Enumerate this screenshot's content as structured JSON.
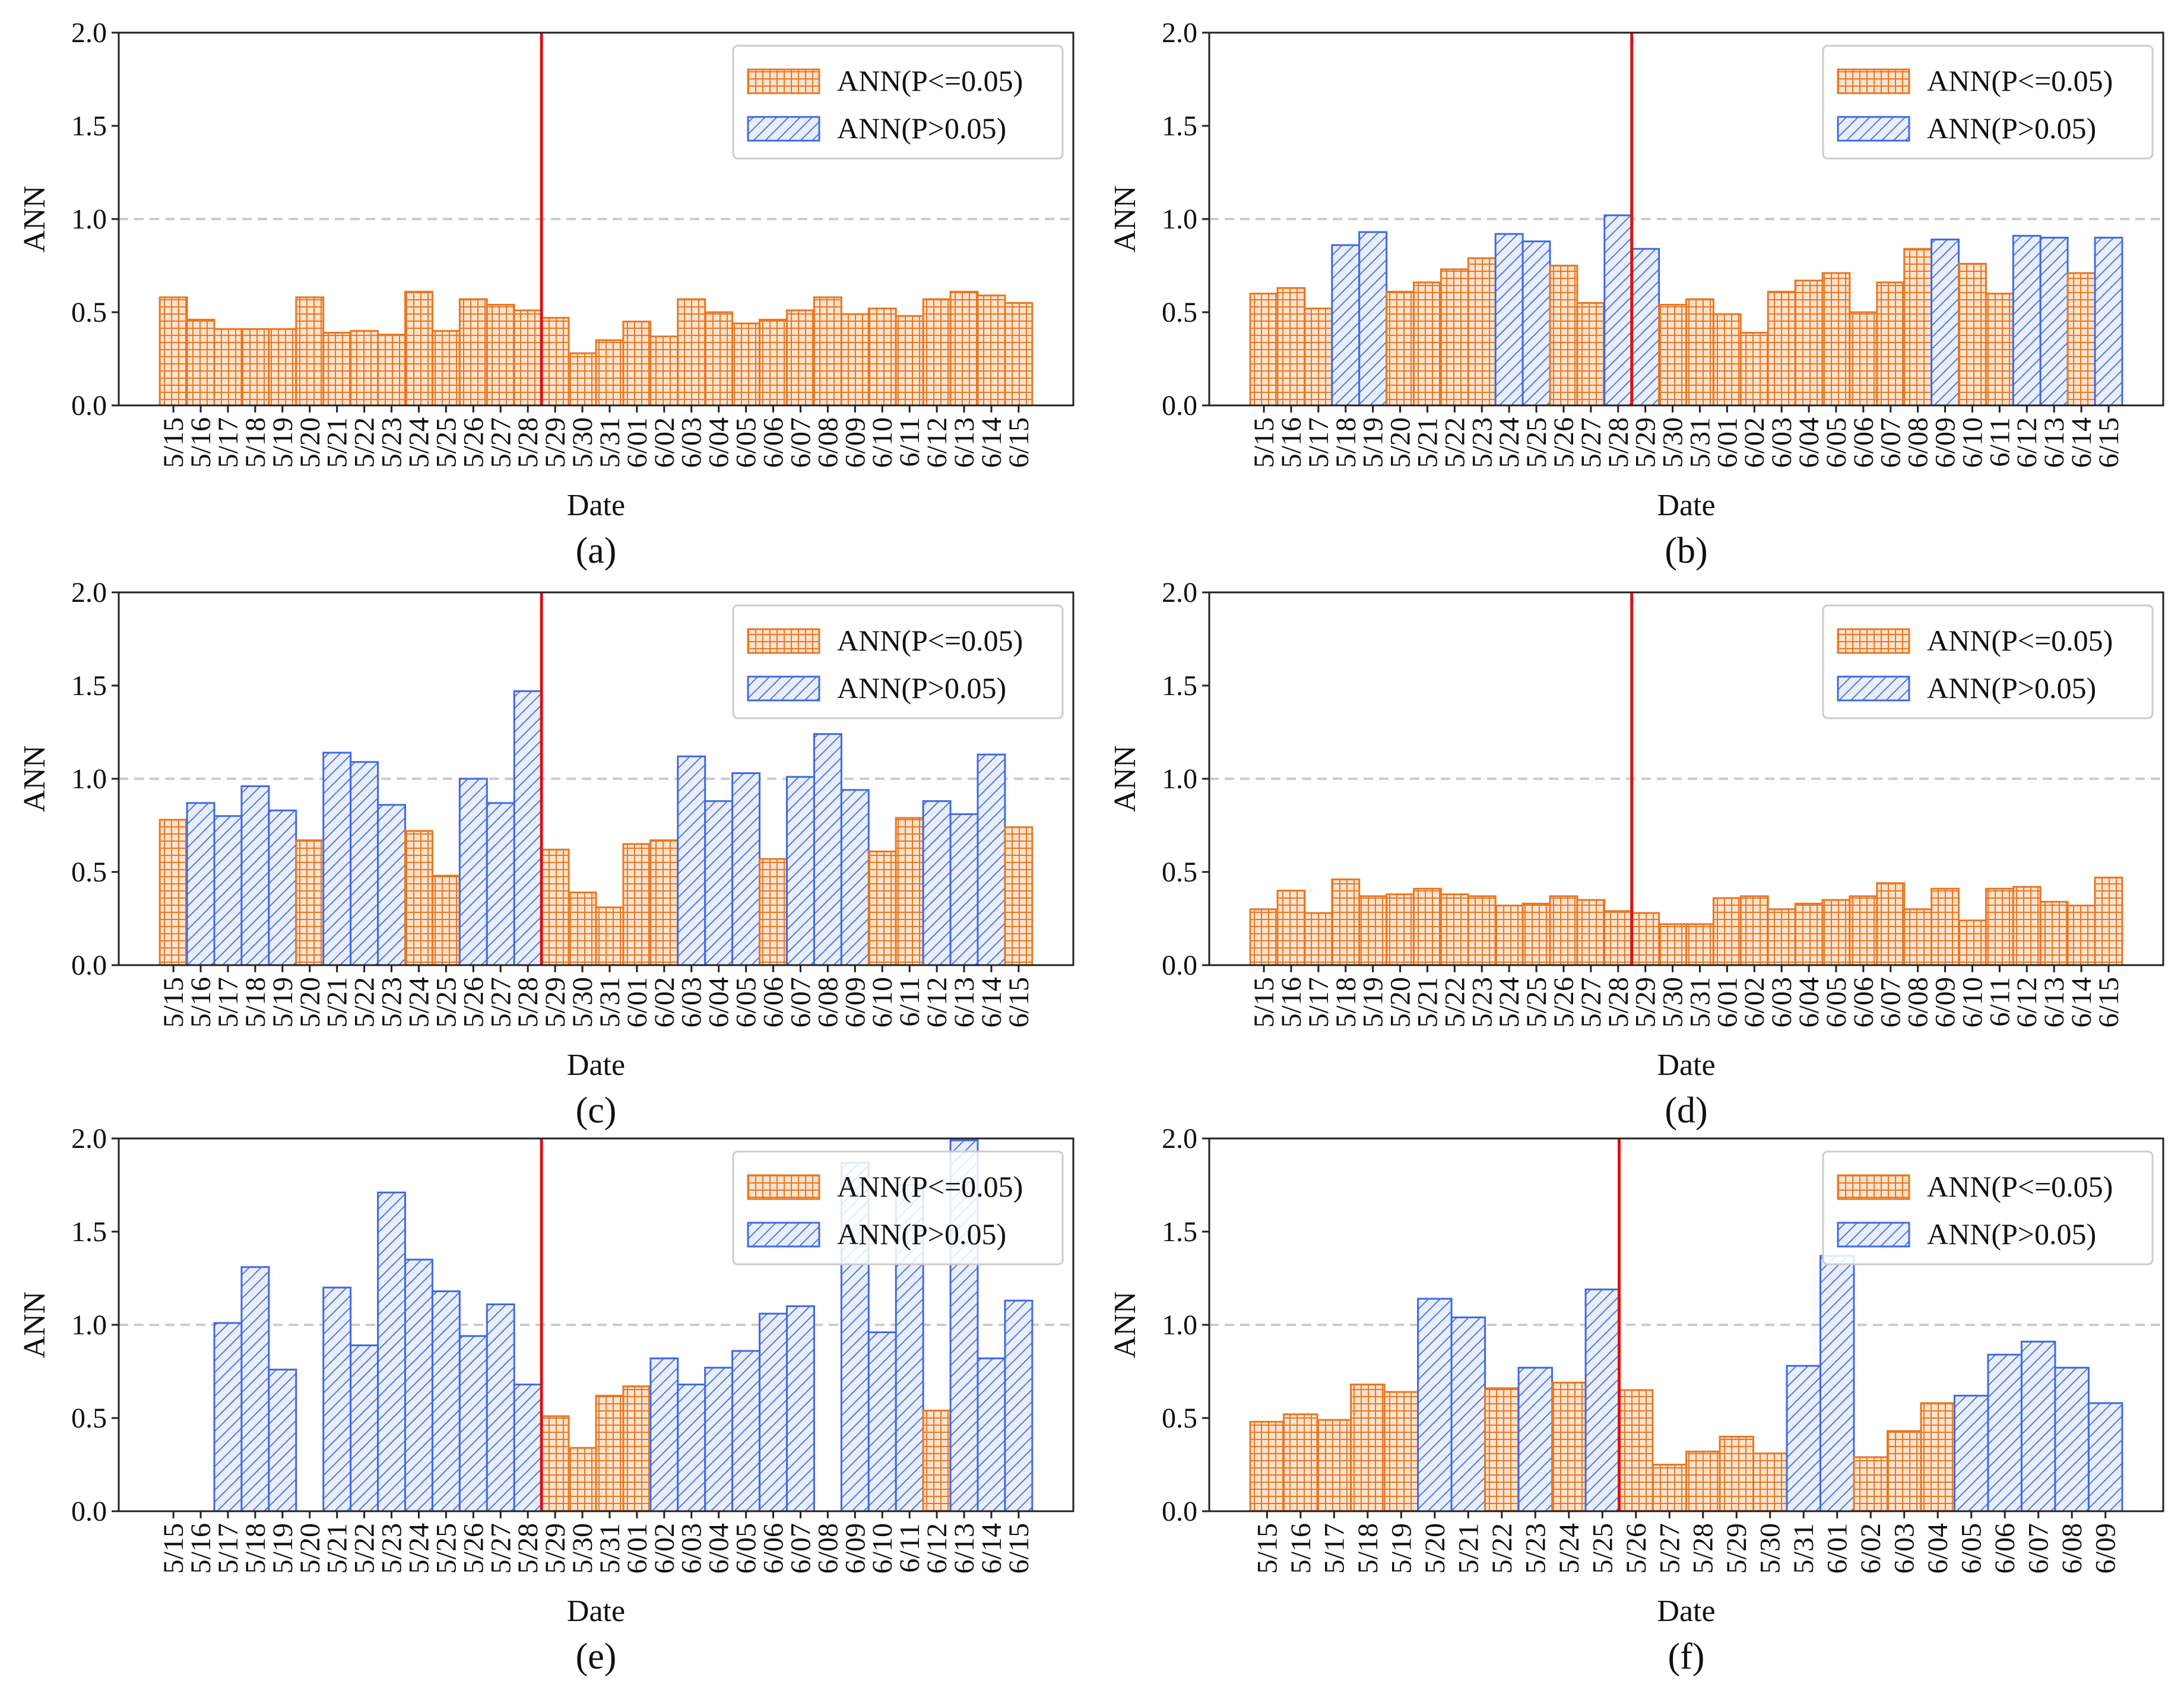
{
  "colors": {
    "sig": "#E87722",
    "nonsig": "#4169E1",
    "redline": "#DD1111",
    "refline": "#CCCCCC"
  },
  "legend": {
    "sig_label": "ANN(P<=0.05)",
    "nonsig_label": "ANN(P>0.05)"
  },
  "chart_data": [
    {
      "type": "bar",
      "caption": "(a)",
      "xlabel": "Date",
      "ylabel": "ANN",
      "ylim": [
        0,
        2.0
      ],
      "yticks": [
        "0.0",
        "0.5",
        "1.0",
        "1.5",
        "2.0"
      ],
      "reference_line": 1.0,
      "vline_after": "5/28",
      "legend_position": "top-right",
      "categories": [
        "5/15",
        "5/16",
        "5/17",
        "5/18",
        "5/19",
        "5/20",
        "5/21",
        "5/22",
        "5/23",
        "5/24",
        "5/25",
        "5/26",
        "5/27",
        "5/28",
        "5/29",
        "5/30",
        "5/31",
        "6/01",
        "6/02",
        "6/03",
        "6/04",
        "6/05",
        "6/06",
        "6/07",
        "6/08",
        "6/09",
        "6/10",
        "6/11",
        "6/12",
        "6/13",
        "6/14",
        "6/15"
      ],
      "series": [
        {
          "name": "ANN",
          "values": [
            0.58,
            0.46,
            0.41,
            0.41,
            0.41,
            0.58,
            0.39,
            0.4,
            0.38,
            0.61,
            0.4,
            0.57,
            0.54,
            0.51,
            0.47,
            0.28,
            0.35,
            0.45,
            0.37,
            0.57,
            0.5,
            0.44,
            0.46,
            0.51,
            0.58,
            0.49,
            0.52,
            0.48,
            0.57,
            0.61,
            0.59,
            0.55
          ]
        },
        {
          "name": "significant",
          "values": [
            1,
            1,
            1,
            1,
            1,
            1,
            1,
            1,
            1,
            1,
            1,
            1,
            1,
            1,
            1,
            1,
            1,
            1,
            1,
            1,
            1,
            1,
            1,
            1,
            1,
            1,
            1,
            1,
            1,
            1,
            1,
            1
          ]
        }
      ]
    },
    {
      "type": "bar",
      "caption": "(b)",
      "xlabel": "Date",
      "ylabel": "ANN",
      "ylim": [
        0,
        2.0
      ],
      "yticks": [
        "0.0",
        "0.5",
        "1.0",
        "1.5",
        "2.0"
      ],
      "reference_line": 1.0,
      "vline_after": "5/28",
      "legend_position": "top-right",
      "categories": [
        "5/15",
        "5/16",
        "5/17",
        "5/18",
        "5/19",
        "5/20",
        "5/21",
        "5/22",
        "5/23",
        "5/24",
        "5/25",
        "5/26",
        "5/27",
        "5/28",
        "5/29",
        "5/30",
        "5/31",
        "6/01",
        "6/02",
        "6/03",
        "6/04",
        "6/05",
        "6/06",
        "6/07",
        "6/08",
        "6/09",
        "6/10",
        "6/11",
        "6/12",
        "6/13",
        "6/14",
        "6/15"
      ],
      "series": [
        {
          "name": "ANN",
          "values": [
            0.6,
            0.63,
            0.52,
            0.86,
            0.93,
            0.61,
            0.66,
            0.73,
            0.79,
            0.92,
            0.88,
            0.75,
            0.55,
            1.02,
            0.84,
            0.54,
            0.57,
            0.49,
            0.39,
            0.61,
            0.67,
            0.71,
            0.5,
            0.66,
            0.84,
            0.89,
            0.76,
            0.6,
            0.91,
            0.9,
            0.71,
            0.9
          ]
        },
        {
          "name": "significant",
          "values": [
            1,
            1,
            1,
            0,
            0,
            1,
            1,
            1,
            1,
            0,
            0,
            1,
            1,
            0,
            0,
            1,
            1,
            1,
            1,
            1,
            1,
            1,
            1,
            1,
            1,
            0,
            1,
            1,
            0,
            0,
            1,
            0
          ]
        }
      ]
    },
    {
      "type": "bar",
      "caption": "(c)",
      "xlabel": "Date",
      "ylabel": "ANN",
      "ylim": [
        0,
        2.0
      ],
      "yticks": [
        "0.0",
        "0.5",
        "1.0",
        "1.5",
        "2.0"
      ],
      "reference_line": 1.0,
      "vline_after": "5/28",
      "legend_position": "top-right",
      "categories": [
        "5/15",
        "5/16",
        "5/17",
        "5/18",
        "5/19",
        "5/20",
        "5/21",
        "5/22",
        "5/23",
        "5/24",
        "5/25",
        "5/26",
        "5/27",
        "5/28",
        "5/29",
        "5/30",
        "5/31",
        "6/01",
        "6/02",
        "6/03",
        "6/04",
        "6/05",
        "6/06",
        "6/07",
        "6/08",
        "6/09",
        "6/10",
        "6/11",
        "6/12",
        "6/13",
        "6/14",
        "6/15"
      ],
      "series": [
        {
          "name": "ANN",
          "values": [
            0.78,
            0.87,
            0.8,
            0.96,
            0.83,
            0.67,
            1.14,
            1.09,
            0.86,
            0.72,
            0.48,
            1.0,
            0.87,
            1.47,
            0.62,
            0.39,
            0.31,
            0.65,
            0.67,
            1.12,
            0.88,
            1.03,
            0.57,
            1.01,
            1.24,
            0.94,
            0.61,
            0.79,
            0.88,
            0.81,
            1.13,
            0.74
          ]
        },
        {
          "name": "significant",
          "values": [
            1,
            0,
            0,
            0,
            0,
            1,
            0,
            0,
            0,
            1,
            1,
            0,
            0,
            0,
            1,
            1,
            1,
            1,
            1,
            0,
            0,
            0,
            1,
            0,
            0,
            0,
            1,
            1,
            0,
            0,
            0,
            1
          ]
        }
      ]
    },
    {
      "type": "bar",
      "caption": "(d)",
      "xlabel": "Date",
      "ylabel": "ANN",
      "ylim": [
        0,
        2.0
      ],
      "yticks": [
        "0.0",
        "0.5",
        "1.0",
        "1.5",
        "2.0"
      ],
      "reference_line": 1.0,
      "vline_after": "5/28",
      "legend_position": "top-right",
      "categories": [
        "5/15",
        "5/16",
        "5/17",
        "5/18",
        "5/19",
        "5/20",
        "5/21",
        "5/22",
        "5/23",
        "5/24",
        "5/25",
        "5/26",
        "5/27",
        "5/28",
        "5/29",
        "5/30",
        "5/31",
        "6/01",
        "6/02",
        "6/03",
        "6/04",
        "6/05",
        "6/06",
        "6/07",
        "6/08",
        "6/09",
        "6/10",
        "6/11",
        "6/12",
        "6/13",
        "6/14",
        "6/15"
      ],
      "series": [
        {
          "name": "ANN",
          "values": [
            0.3,
            0.4,
            0.28,
            0.46,
            0.37,
            0.38,
            0.41,
            0.38,
            0.37,
            0.32,
            0.33,
            0.37,
            0.35,
            0.29,
            0.28,
            0.22,
            0.22,
            0.36,
            0.37,
            0.3,
            0.33,
            0.35,
            0.37,
            0.44,
            0.3,
            0.41,
            0.24,
            0.41,
            0.42,
            0.34,
            0.32,
            0.47
          ]
        },
        {
          "name": "significant",
          "values": [
            1,
            1,
            1,
            1,
            1,
            1,
            1,
            1,
            1,
            1,
            1,
            1,
            1,
            1,
            1,
            1,
            1,
            1,
            1,
            1,
            1,
            1,
            1,
            1,
            1,
            1,
            1,
            1,
            1,
            1,
            1,
            1
          ]
        }
      ]
    },
    {
      "type": "bar",
      "caption": "(e)",
      "xlabel": "Date",
      "ylabel": "ANN",
      "ylim": [
        0,
        2.0
      ],
      "yticks": [
        "0.0",
        "0.5",
        "1.0",
        "1.5",
        "2.0"
      ],
      "reference_line": 1.0,
      "vline_after": "5/28",
      "legend_position": "top-right",
      "categories": [
        "5/15",
        "5/16",
        "5/17",
        "5/18",
        "5/19",
        "5/20",
        "5/21",
        "5/22",
        "5/23",
        "5/24",
        "5/25",
        "5/26",
        "5/27",
        "5/28",
        "5/29",
        "5/30",
        "5/31",
        "6/01",
        "6/02",
        "6/03",
        "6/04",
        "6/05",
        "6/06",
        "6/07",
        "6/08",
        "6/09",
        "6/10",
        "6/11",
        "6/12",
        "6/13",
        "6/14",
        "6/15"
      ],
      "series": [
        {
          "name": "ANN",
          "values": [
            null,
            null,
            1.01,
            1.31,
            0.76,
            null,
            1.2,
            0.89,
            1.71,
            1.35,
            1.18,
            0.94,
            1.11,
            0.68,
            0.51,
            0.34,
            0.62,
            0.67,
            0.82,
            0.68,
            0.77,
            0.86,
            1.06,
            1.1,
            null,
            1.87,
            0.96,
            1.75,
            0.54,
            1.99,
            0.82,
            1.13
          ]
        },
        {
          "name": "significant",
          "values": [
            0,
            0,
            0,
            0,
            0,
            0,
            0,
            0,
            0,
            0,
            0,
            0,
            0,
            0,
            1,
            1,
            1,
            1,
            0,
            0,
            0,
            0,
            0,
            0,
            0,
            0,
            0,
            0,
            1,
            0,
            0,
            0
          ]
        }
      ]
    },
    {
      "type": "bar",
      "caption": "(f)",
      "xlabel": "Date",
      "ylabel": "ANN",
      "ylim": [
        0,
        2.0
      ],
      "yticks": [
        "0.0",
        "0.5",
        "1.0",
        "1.5",
        "2.0"
      ],
      "reference_line": 1.0,
      "vline_after": "5/25",
      "legend_position": "top-right",
      "categories": [
        "5/15",
        "5/16",
        "5/17",
        "5/18",
        "5/19",
        "5/20",
        "5/21",
        "5/22",
        "5/23",
        "5/24",
        "5/25",
        "5/26",
        "5/27",
        "5/28",
        "5/29",
        "5/30",
        "5/31",
        "6/01",
        "6/02",
        "6/03",
        "6/04",
        "6/05",
        "6/06",
        "6/07",
        "6/08",
        "6/09"
      ],
      "series": [
        {
          "name": "ANN",
          "values": [
            0.48,
            0.52,
            0.49,
            0.68,
            0.64,
            1.14,
            1.04,
            0.66,
            0.77,
            0.69,
            1.19,
            0.65,
            0.25,
            0.32,
            0.4,
            0.31,
            0.78,
            1.37,
            0.29,
            0.43,
            0.58,
            0.62,
            0.84,
            0.91,
            0.77,
            0.58
          ]
        },
        {
          "name": "significant",
          "values": [
            1,
            1,
            1,
            1,
            1,
            0,
            0,
            1,
            0,
            1,
            0,
            1,
            1,
            1,
            1,
            1,
            0,
            0,
            1,
            1,
            1,
            0,
            0,
            0,
            0,
            0
          ]
        }
      ]
    }
  ]
}
